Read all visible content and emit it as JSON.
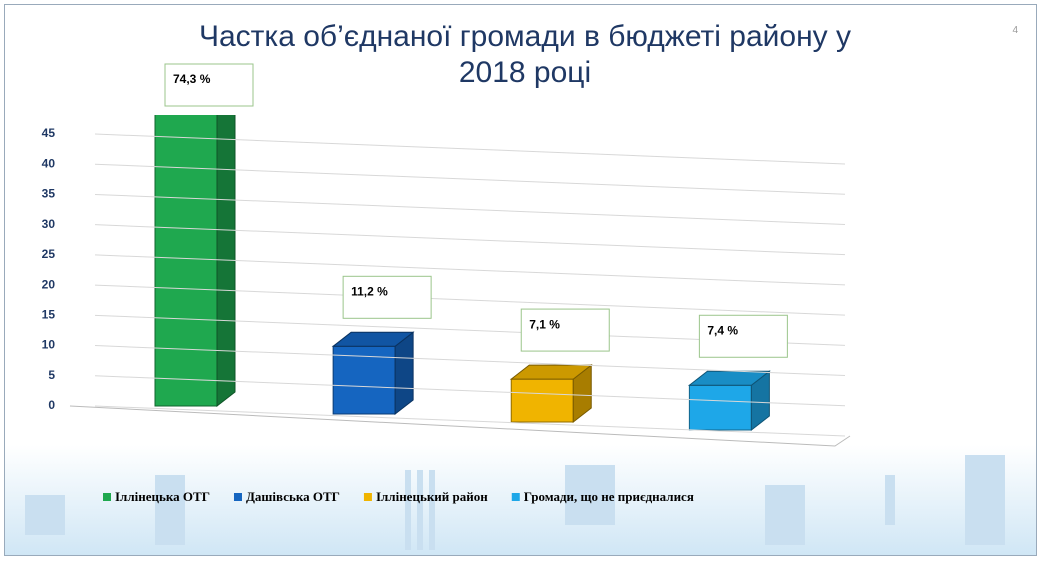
{
  "page_number": "4",
  "chart_data": {
    "type": "bar3d",
    "title": "Частка об’єднаної громади в бюджеті району у 2018 році",
    "categories": [
      "Іллінецька ОТГ",
      "Дашівська ОТГ",
      "Іллінецький район",
      "Громади, що не приєдналися"
    ],
    "values": [
      74.3,
      11.2,
      7.1,
      7.4
    ],
    "value_labels": [
      "74,3 %",
      "11,2 %",
      "7,1 %",
      "7,4 %"
    ],
    "colors": [
      "#1fa84f",
      "#1565c0",
      "#f0b400",
      "#1ea7e8"
    ],
    "ylim": [
      0,
      45
    ],
    "yticks": [
      0,
      5,
      10,
      15,
      20,
      25,
      30,
      35,
      40,
      45
    ],
    "grid": true,
    "legend": "bottom"
  }
}
